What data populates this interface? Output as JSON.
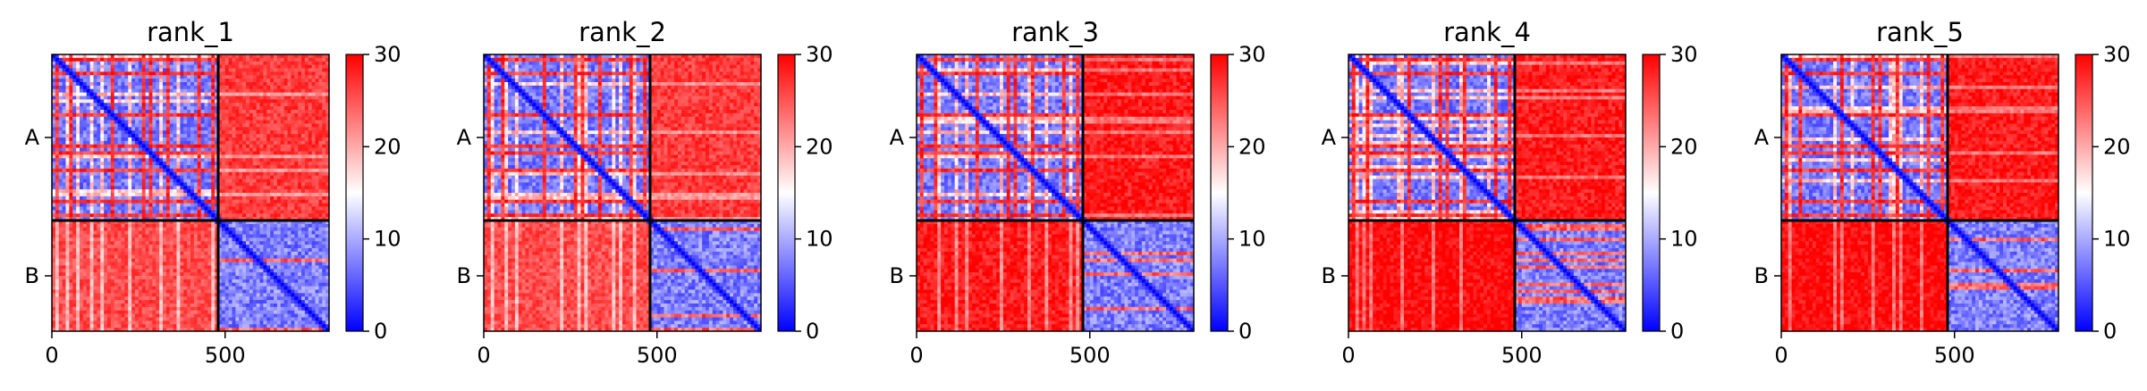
{
  "chart_data": [
    {
      "type": "heatmap",
      "title": "rank_1",
      "row_labels": [
        "A",
        "B"
      ],
      "x_ticks": [
        0,
        500
      ],
      "x_range": [
        0,
        800
      ],
      "chain_boundary": 480,
      "colorbar": {
        "min": 0,
        "max": 30,
        "ticks": [
          0,
          10,
          20,
          30
        ],
        "colors": [
          "#0000ff",
          "#ffffff",
          "#ff0000"
        ]
      },
      "mean_values": {
        "AA": 14,
        "AB": 27,
        "BA": 26,
        "BB": 9
      }
    },
    {
      "type": "heatmap",
      "title": "rank_2",
      "row_labels": [
        "A",
        "B"
      ],
      "x_ticks": [
        0,
        500
      ],
      "x_range": [
        0,
        800
      ],
      "chain_boundary": 480,
      "colorbar": {
        "min": 0,
        "max": 30,
        "ticks": [
          0,
          10,
          20,
          30
        ],
        "colors": [
          "#0000ff",
          "#ffffff",
          "#ff0000"
        ]
      },
      "mean_values": {
        "AA": 14,
        "AB": 27,
        "BA": 26,
        "BB": 9
      }
    },
    {
      "type": "heatmap",
      "title": "rank_3",
      "row_labels": [
        "A",
        "B"
      ],
      "x_ticks": [
        0,
        500
      ],
      "x_range": [
        0,
        800
      ],
      "chain_boundary": 480,
      "colorbar": {
        "min": 0,
        "max": 30,
        "ticks": [
          0,
          10,
          20,
          30
        ],
        "colors": [
          "#0000ff",
          "#ffffff",
          "#ff0000"
        ]
      },
      "mean_values": {
        "AA": 14,
        "AB": 29,
        "BA": 29,
        "BB": 9
      }
    },
    {
      "type": "heatmap",
      "title": "rank_4",
      "row_labels": [
        "A",
        "B"
      ],
      "x_ticks": [
        0,
        500
      ],
      "x_range": [
        0,
        800
      ],
      "chain_boundary": 480,
      "colorbar": {
        "min": 0,
        "max": 30,
        "ticks": [
          0,
          10,
          20,
          30
        ],
        "colors": [
          "#0000ff",
          "#ffffff",
          "#ff0000"
        ]
      },
      "mean_values": {
        "AA": 14,
        "AB": 29,
        "BA": 30,
        "BB": 9
      }
    },
    {
      "type": "heatmap",
      "title": "rank_5",
      "row_labels": [
        "A",
        "B"
      ],
      "x_ticks": [
        0,
        500
      ],
      "x_range": [
        0,
        800
      ],
      "chain_boundary": 480,
      "colorbar": {
        "min": 0,
        "max": 30,
        "ticks": [
          0,
          10,
          20,
          30
        ],
        "colors": [
          "#0000ff",
          "#ffffff",
          "#ff0000"
        ]
      },
      "mean_values": {
        "AA": 14,
        "AB": 29,
        "BA": 30,
        "BB": 9
      }
    }
  ]
}
